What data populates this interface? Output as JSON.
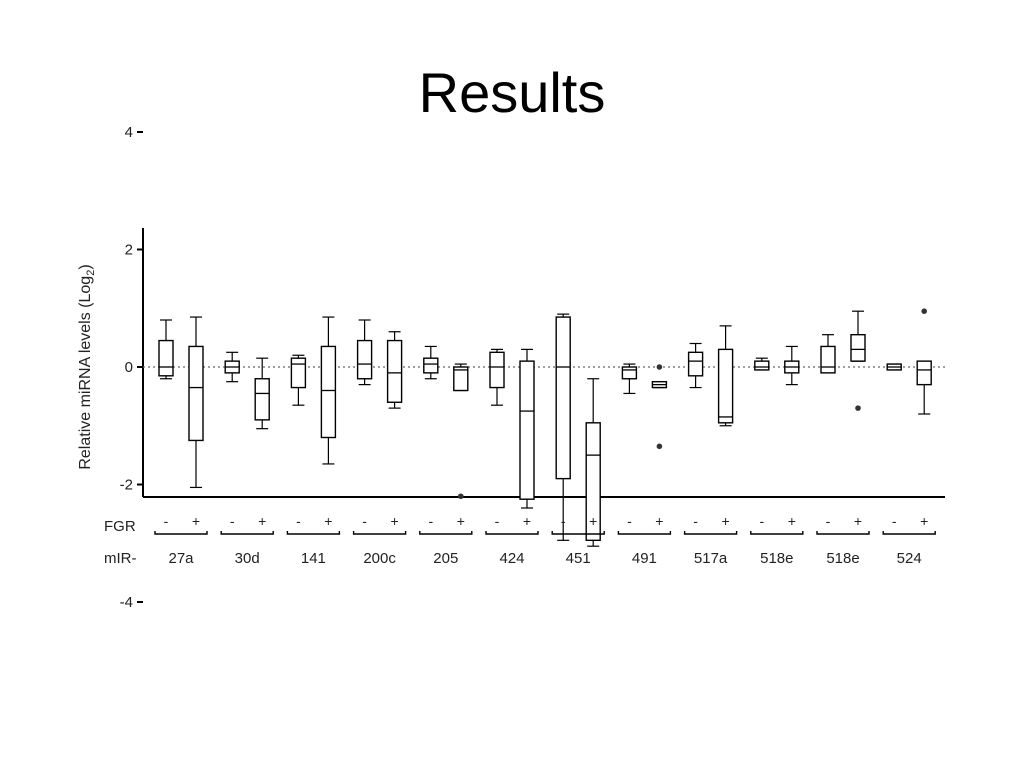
{
  "title": "Results",
  "chart_data": {
    "type": "box",
    "title": "",
    "ylabel": "Relative miRNA levels (Log",
    "ylabel_subscript": "2",
    "ylabel_close": ")",
    "ylim": [
      -4.4,
      4.6
    ],
    "yticks": [
      4,
      2,
      0,
      -2,
      -4
    ],
    "reference_line": 0,
    "row_labels": {
      "condition": "FGR",
      "mirna": "mIR-"
    },
    "condition_labels": [
      "-",
      "+"
    ],
    "categories": [
      "27a",
      "30d",
      "141",
      "200c",
      "205",
      "424",
      "451",
      "491",
      "517a",
      "518e",
      "518e",
      "524"
    ],
    "groups": [
      {
        "mirna": "27a",
        "boxes": [
          {
            "condition": "-",
            "whisker_low": -0.2,
            "q1": -0.15,
            "median": 0.0,
            "q3": 0.45,
            "whisker_high": 0.8,
            "outliers": []
          },
          {
            "condition": "+",
            "whisker_low": -2.05,
            "q1": -1.25,
            "median": -0.35,
            "q3": 0.35,
            "whisker_high": 0.85,
            "outliers": []
          }
        ]
      },
      {
        "mirna": "30d",
        "boxes": [
          {
            "condition": "-",
            "whisker_low": -0.25,
            "q1": -0.1,
            "median": 0.0,
            "q3": 0.1,
            "whisker_high": 0.25,
            "outliers": []
          },
          {
            "condition": "+",
            "whisker_low": -1.05,
            "q1": -0.9,
            "median": -0.45,
            "q3": -0.2,
            "whisker_high": 0.15,
            "outliers": []
          }
        ]
      },
      {
        "mirna": "141",
        "boxes": [
          {
            "condition": "-",
            "whisker_low": -0.65,
            "q1": -0.35,
            "median": 0.05,
            "q3": 0.15,
            "whisker_high": 0.2,
            "outliers": []
          },
          {
            "condition": "+",
            "whisker_low": -1.65,
            "q1": -1.2,
            "median": -0.4,
            "q3": 0.35,
            "whisker_high": 0.85,
            "outliers": []
          }
        ]
      },
      {
        "mirna": "200c",
        "boxes": [
          {
            "condition": "-",
            "whisker_low": -0.3,
            "q1": -0.2,
            "median": 0.05,
            "q3": 0.45,
            "whisker_high": 0.8,
            "outliers": []
          },
          {
            "condition": "+",
            "whisker_low": -0.7,
            "q1": -0.6,
            "median": -0.1,
            "q3": 0.45,
            "whisker_high": 0.6,
            "outliers": []
          }
        ]
      },
      {
        "mirna": "205",
        "boxes": [
          {
            "condition": "-",
            "whisker_low": -0.2,
            "q1": -0.1,
            "median": 0.05,
            "q3": 0.15,
            "whisker_high": 0.35,
            "outliers": []
          },
          {
            "condition": "+",
            "whisker_low": -0.4,
            "q1": -0.4,
            "median": -0.05,
            "q3": 0.0,
            "whisker_high": 0.05,
            "outliers": [
              -2.2
            ]
          }
        ]
      },
      {
        "mirna": "424",
        "boxes": [
          {
            "condition": "-",
            "whisker_low": -0.65,
            "q1": -0.35,
            "median": 0.0,
            "q3": 0.25,
            "whisker_high": 0.3,
            "outliers": []
          },
          {
            "condition": "+",
            "whisker_low": -2.4,
            "q1": -2.25,
            "median": -0.75,
            "q3": 0.1,
            "whisker_high": 0.3,
            "outliers": []
          }
        ]
      },
      {
        "mirna": "451",
        "boxes": [
          {
            "condition": "-",
            "whisker_low": -2.95,
            "q1": -1.9,
            "median": 0.0,
            "q3": 0.85,
            "whisker_high": 0.9,
            "outliers": []
          },
          {
            "condition": "+",
            "whisker_low": -3.05,
            "q1": -2.95,
            "median": -1.5,
            "q3": -0.95,
            "whisker_high": -0.2,
            "outliers": []
          }
        ]
      },
      {
        "mirna": "491",
        "boxes": [
          {
            "condition": "-",
            "whisker_low": -0.45,
            "q1": -0.2,
            "median": -0.05,
            "q3": 0.0,
            "whisker_high": 0.05,
            "outliers": []
          },
          {
            "condition": "+",
            "whisker_low": -0.35,
            "q1": -0.35,
            "median": -0.3,
            "q3": -0.25,
            "whisker_high": -0.25,
            "outliers": [
              0.0,
              -1.35
            ]
          }
        ]
      },
      {
        "mirna": "517a",
        "boxes": [
          {
            "condition": "-",
            "whisker_low": -0.35,
            "q1": -0.15,
            "median": 0.1,
            "q3": 0.25,
            "whisker_high": 0.4,
            "outliers": []
          },
          {
            "condition": "+",
            "whisker_low": -1.0,
            "q1": -0.95,
            "median": -0.85,
            "q3": 0.3,
            "whisker_high": 0.7,
            "outliers": []
          }
        ]
      },
      {
        "mirna": "518e",
        "boxes": [
          {
            "condition": "-",
            "whisker_low": -0.05,
            "q1": -0.05,
            "median": 0.0,
            "q3": 0.1,
            "whisker_high": 0.15,
            "outliers": []
          },
          {
            "condition": "+",
            "whisker_low": -0.3,
            "q1": -0.1,
            "median": 0.0,
            "q3": 0.1,
            "whisker_high": 0.35,
            "outliers": []
          }
        ]
      },
      {
        "mirna": "518e",
        "boxes": [
          {
            "condition": "-",
            "whisker_low": -0.1,
            "q1": -0.1,
            "median": 0.0,
            "q3": 0.35,
            "whisker_high": 0.55,
            "outliers": []
          },
          {
            "condition": "+",
            "whisker_low": 0.1,
            "q1": 0.1,
            "median": 0.3,
            "q3": 0.55,
            "whisker_high": 0.95,
            "outliers": [
              -0.7
            ]
          }
        ]
      },
      {
        "mirna": "524",
        "boxes": [
          {
            "condition": "-",
            "whisker_low": -0.05,
            "q1": -0.05,
            "median": 0.0,
            "q3": 0.05,
            "whisker_high": 0.05,
            "outliers": []
          },
          {
            "condition": "+",
            "whisker_low": -0.8,
            "q1": -0.3,
            "median": -0.05,
            "q3": 0.1,
            "whisker_high": 0.1,
            "outliers": [
              0.95
            ]
          }
        ]
      }
    ]
  }
}
